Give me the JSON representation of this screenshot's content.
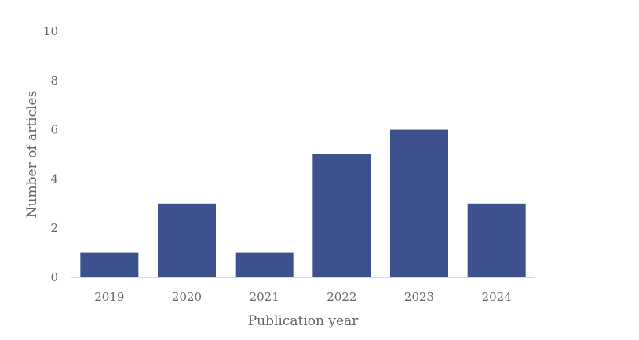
{
  "chart_data": {
    "type": "bar",
    "categories": [
      "2019",
      "2020",
      "2021",
      "2022",
      "2023",
      "2024"
    ],
    "values": [
      1,
      3,
      1,
      5,
      6,
      3
    ],
    "xlabel": "Publication year",
    "ylabel": "Number of articles",
    "ylim": [
      0,
      10
    ],
    "yticks": [
      0,
      2,
      4,
      6,
      8,
      10
    ],
    "grid": false,
    "legend": "none",
    "bar_color": "#3d518c",
    "axis_color": "#d9d9d9",
    "text_color": "#666666"
  }
}
